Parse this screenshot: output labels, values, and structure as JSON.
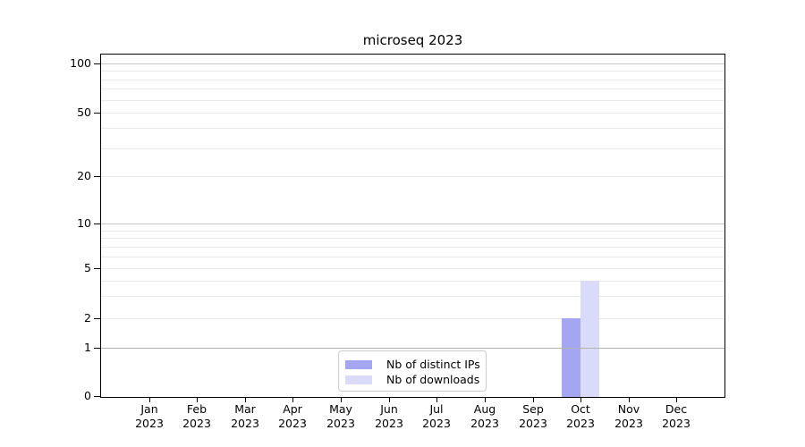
{
  "figure": {
    "title": "microseq 2023",
    "background": "#ffffff"
  },
  "chart_data": {
    "type": "bar",
    "title": "microseq 2023",
    "categories": [
      "Jan",
      "Feb",
      "Mar",
      "Apr",
      "May",
      "Jun",
      "Jul",
      "Aug",
      "Sep",
      "Oct",
      "Nov",
      "Dec"
    ],
    "x_year": "2023",
    "series": [
      {
        "name": "Nb of distinct IPs",
        "color": "#a5a6f1",
        "values": [
          0,
          0,
          0,
          0,
          0,
          0,
          0,
          0,
          0,
          2,
          0,
          0
        ]
      },
      {
        "name": "Nb of downloads",
        "color": "#dadaf9",
        "values": [
          0,
          0,
          0,
          0,
          0,
          0,
          0,
          0,
          0,
          4,
          0,
          0
        ]
      }
    ],
    "y_axis": {
      "scale": "symlog",
      "ticks": [
        0,
        1,
        2,
        5,
        10,
        20,
        50,
        100
      ],
      "light_gridlines": [
        2,
        3,
        4,
        5,
        6,
        7,
        8,
        9,
        20,
        30,
        40,
        50,
        60,
        70,
        80,
        90
      ],
      "strong_gridlines": [
        1,
        10,
        100
      ],
      "range": [
        0,
        115
      ]
    },
    "x_axis": {
      "tick_label_lines": 2
    },
    "legend": {
      "position": "bottom-center",
      "entries": [
        "Nb of distinct IPs",
        "Nb of downloads"
      ]
    },
    "grid": "horizontal",
    "colors": {
      "light_grid": "#e9e9e9",
      "strong_grid_1": "#b2b2b2",
      "strong_grid_pow10": "#c6c6c6",
      "axis": "#000000"
    }
  }
}
